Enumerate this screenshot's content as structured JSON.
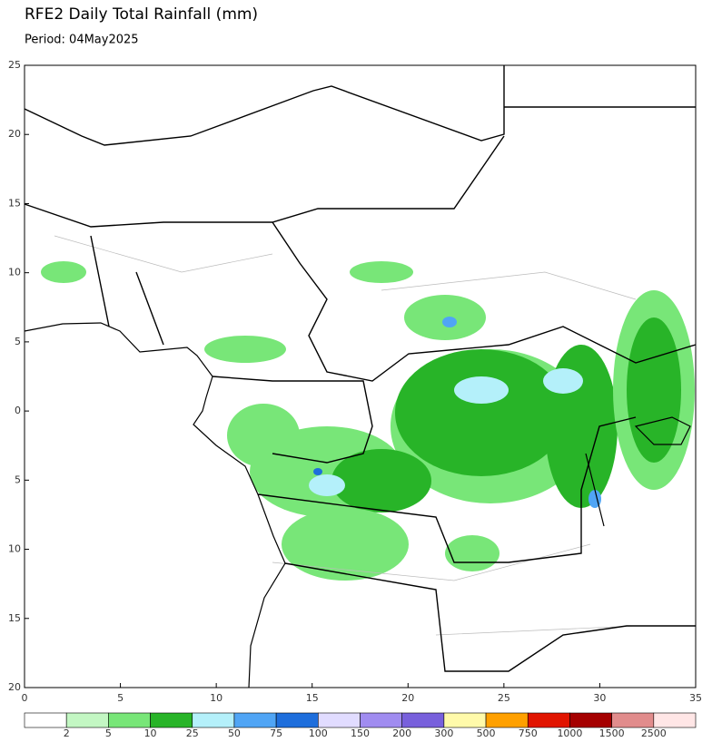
{
  "header": {
    "title": "RFE2 Daily Total Rainfall (mm)",
    "period": "Period: 04May2025"
  },
  "map": {
    "xlim": [
      0,
      35
    ],
    "ylim": [
      -20,
      25
    ],
    "xticks": [
      0,
      5,
      10,
      15,
      20,
      25,
      30,
      35
    ],
    "yticks": [
      25,
      20,
      15,
      10,
      5,
      0,
      {
        "value": -5,
        "label": "5"
      },
      {
        "value": -10,
        "label": "10"
      },
      {
        "value": -15,
        "label": "15"
      },
      {
        "value": -20,
        "label": "20"
      }
    ]
  },
  "legend": {
    "labels": [
      2,
      5,
      10,
      25,
      50,
      75,
      100,
      150,
      200,
      300,
      500,
      750,
      1000,
      1500,
      2500
    ],
    "colors": [
      "#ffffff",
      "#c3f7c3",
      "#78e678",
      "#28b428",
      "#b4f0fa",
      "#50a5f5",
      "#1e6edc",
      "#e1dcff",
      "#a08cf0",
      "#7860dc",
      "#fffaaa",
      "#ffa000",
      "#e11400",
      "#a50000",
      "#e18c8c",
      "#ffe6e6"
    ]
  }
}
